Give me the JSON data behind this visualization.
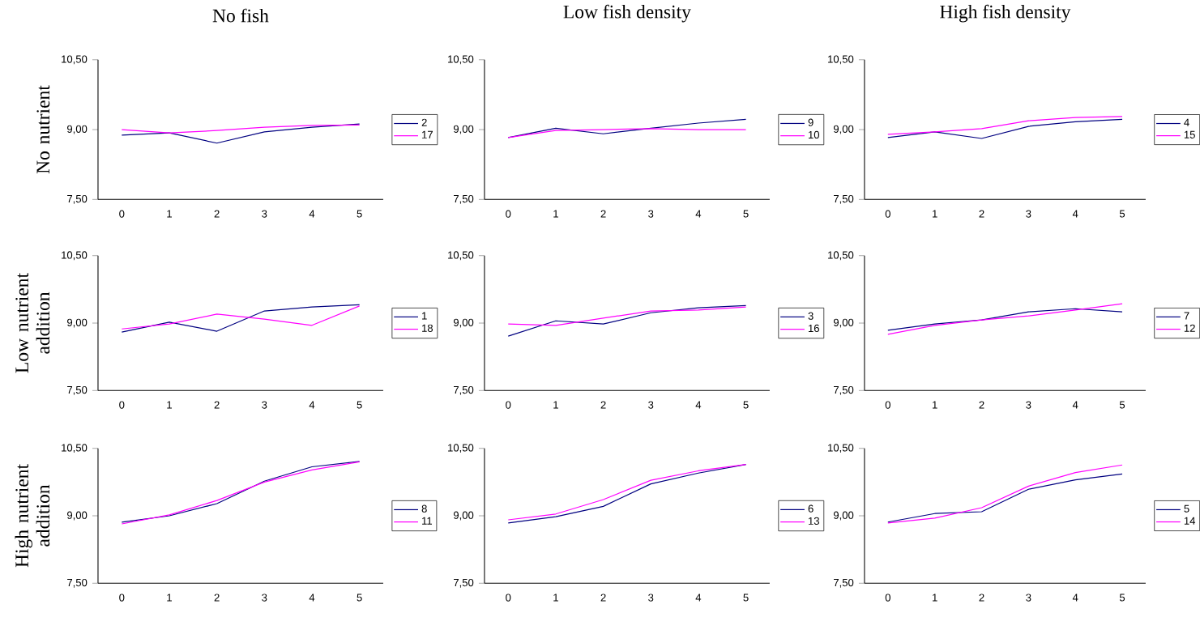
{
  "chart_data": [
    {
      "type": "line",
      "title": "No fish",
      "ylabel": "No nutrient",
      "categories": [
        "0",
        "1",
        "2",
        "3",
        "4",
        "5"
      ],
      "ylim": [
        7.5,
        10.5
      ],
      "yticks": [
        {
          "value": 7.5,
          "label": "7,50"
        },
        {
          "value": 9.0,
          "label": "9,00"
        },
        {
          "value": 10.5,
          "label": "10,50"
        }
      ],
      "legend": "right",
      "series": [
        {
          "name": "2",
          "color": "#000080",
          "values": [
            8.88,
            8.93,
            8.71,
            8.95,
            9.05,
            9.12
          ]
        },
        {
          "name": "17",
          "color": "#ff00ff",
          "values": [
            9.0,
            8.93,
            8.98,
            9.05,
            9.09,
            9.1
          ]
        }
      ]
    },
    {
      "type": "line",
      "title": "Low fish density",
      "categories": [
        "0",
        "1",
        "2",
        "3",
        "4",
        "5"
      ],
      "ylim": [
        7.5,
        10.5
      ],
      "yticks": [
        {
          "value": 7.5,
          "label": "7,50"
        },
        {
          "value": 9.0,
          "label": "9,00"
        },
        {
          "value": 10.5,
          "label": "10,50"
        }
      ],
      "legend": "right",
      "series": [
        {
          "name": "9",
          "color": "#000080",
          "values": [
            8.83,
            9.03,
            8.91,
            9.03,
            9.14,
            9.22
          ]
        },
        {
          "name": "10",
          "color": "#ff00ff",
          "values": [
            8.83,
            8.98,
            9.0,
            9.02,
            9.0,
            9.0
          ]
        }
      ]
    },
    {
      "type": "line",
      "title": "High fish density",
      "categories": [
        "0",
        "1",
        "2",
        "3",
        "4",
        "5"
      ],
      "ylim": [
        7.5,
        10.5
      ],
      "yticks": [
        {
          "value": 7.5,
          "label": "7,50"
        },
        {
          "value": 9.0,
          "label": "9,00"
        },
        {
          "value": 10.5,
          "label": "10,50"
        }
      ],
      "legend": "right",
      "series": [
        {
          "name": "4",
          "color": "#000080",
          "values": [
            8.83,
            8.95,
            8.81,
            9.07,
            9.17,
            9.22
          ]
        },
        {
          "name": "15",
          "color": "#ff00ff",
          "values": [
            8.9,
            8.95,
            9.02,
            9.19,
            9.26,
            9.28
          ]
        }
      ]
    },
    {
      "type": "line",
      "ylabel": "Low nutrient addition",
      "categories": [
        "0",
        "1",
        "2",
        "3",
        "4",
        "5"
      ],
      "ylim": [
        7.5,
        10.5
      ],
      "yticks": [
        {
          "value": 7.5,
          "label": "7,50"
        },
        {
          "value": 9.0,
          "label": "9,00"
        },
        {
          "value": 10.5,
          "label": "10,50"
        }
      ],
      "legend": "right",
      "series": [
        {
          "name": "1",
          "color": "#000080",
          "values": [
            8.8,
            9.02,
            8.82,
            9.27,
            9.36,
            9.41
          ]
        },
        {
          "name": "18",
          "color": "#ff00ff",
          "values": [
            8.87,
            8.98,
            9.2,
            9.09,
            8.95,
            9.38
          ]
        }
      ]
    },
    {
      "type": "line",
      "categories": [
        "0",
        "1",
        "2",
        "3",
        "4",
        "5"
      ],
      "ylim": [
        7.5,
        10.5
      ],
      "yticks": [
        {
          "value": 7.5,
          "label": "7,50"
        },
        {
          "value": 9.0,
          "label": "9,00"
        },
        {
          "value": 10.5,
          "label": "10,50"
        }
      ],
      "legend": "right",
      "series": [
        {
          "name": "3",
          "color": "#000080",
          "values": [
            8.71,
            9.05,
            8.98,
            9.23,
            9.34,
            9.39
          ]
        },
        {
          "name": "16",
          "color": "#ff00ff",
          "values": [
            8.98,
            8.95,
            9.11,
            9.27,
            9.29,
            9.36
          ]
        }
      ]
    },
    {
      "type": "line",
      "categories": [
        "0",
        "1",
        "2",
        "3",
        "4",
        "5"
      ],
      "ylim": [
        7.5,
        10.5
      ],
      "yticks": [
        {
          "value": 7.5,
          "label": "7,50"
        },
        {
          "value": 9.0,
          "label": "9,00"
        },
        {
          "value": 10.5,
          "label": "10,50"
        }
      ],
      "legend": "right",
      "series": [
        {
          "name": "7",
          "color": "#000080",
          "values": [
            8.84,
            8.98,
            9.07,
            9.25,
            9.32,
            9.25
          ]
        },
        {
          "name": "12",
          "color": "#ff00ff",
          "values": [
            8.75,
            8.95,
            9.07,
            9.16,
            9.29,
            9.43
          ]
        }
      ]
    },
    {
      "type": "line",
      "ylabel": "High nutrient addition",
      "categories": [
        "0",
        "1",
        "2",
        "3",
        "4",
        "5"
      ],
      "ylim": [
        7.5,
        10.5
      ],
      "yticks": [
        {
          "value": 7.5,
          "label": "7,50"
        },
        {
          "value": 9.0,
          "label": "9,00"
        },
        {
          "value": 10.5,
          "label": "10,50"
        }
      ],
      "legend": "right",
      "series": [
        {
          "name": "8",
          "color": "#000080",
          "values": [
            8.86,
            9.0,
            9.27,
            9.77,
            10.09,
            10.21
          ]
        },
        {
          "name": "11",
          "color": "#ff00ff",
          "values": [
            8.82,
            9.02,
            9.34,
            9.75,
            10.02,
            10.2
          ]
        }
      ]
    },
    {
      "type": "line",
      "categories": [
        "0",
        "1",
        "2",
        "3",
        "4",
        "5"
      ],
      "ylim": [
        7.5,
        10.5
      ],
      "yticks": [
        {
          "value": 7.5,
          "label": "7,50"
        },
        {
          "value": 9.0,
          "label": "9,00"
        },
        {
          "value": 10.5,
          "label": "10,50"
        }
      ],
      "legend": "right",
      "series": [
        {
          "name": "6",
          "color": "#000080",
          "values": [
            8.84,
            8.98,
            9.21,
            9.71,
            9.95,
            10.14
          ]
        },
        {
          "name": "13",
          "color": "#ff00ff",
          "values": [
            8.91,
            9.04,
            9.36,
            9.79,
            10.0,
            10.14
          ]
        }
      ]
    },
    {
      "type": "line",
      "categories": [
        "0",
        "1",
        "2",
        "3",
        "4",
        "5"
      ],
      "ylim": [
        7.5,
        10.5
      ],
      "yticks": [
        {
          "value": 7.5,
          "label": "7,50"
        },
        {
          "value": 9.0,
          "label": "9,00"
        },
        {
          "value": 10.5,
          "label": "10,50"
        }
      ],
      "legend": "right",
      "series": [
        {
          "name": "5",
          "color": "#000080",
          "values": [
            8.86,
            9.05,
            9.09,
            9.59,
            9.8,
            9.93
          ]
        },
        {
          "name": "14",
          "color": "#ff00ff",
          "values": [
            8.84,
            8.95,
            9.18,
            9.66,
            9.96,
            10.13
          ]
        }
      ]
    }
  ]
}
